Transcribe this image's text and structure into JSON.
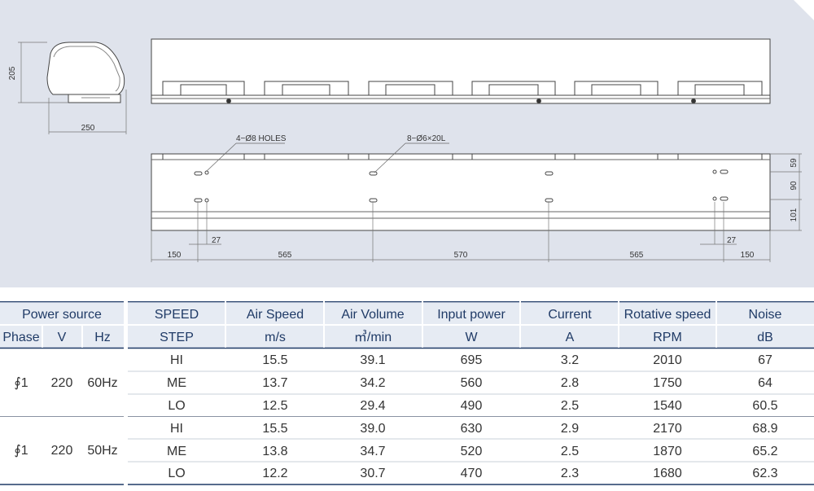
{
  "drawing": {
    "height_dim": "205",
    "width_dim": "250",
    "holes_label": "4−Ø8 HOLES",
    "slots_label": "8−Ø6×20L",
    "right_dims": [
      "59",
      "90",
      "101"
    ],
    "left_27": "27",
    "right_27": "27",
    "bottom_dims": [
      "150",
      "565",
      "570",
      "565",
      "150"
    ]
  },
  "table": {
    "header1": {
      "power_source": "Power source",
      "speed": "SPEED",
      "air_speed": "Air Speed",
      "air_volume": "Air Volume",
      "input_power": "Input power",
      "current": "Current",
      "rotative_speed": "Rotative speed",
      "noise": "Noise"
    },
    "header2": {
      "phase": "Phase",
      "v": "V",
      "hz": "Hz",
      "step": "STEP",
      "air_speed_unit": "m/s",
      "air_volume_unit": "㎥/min",
      "input_power_unit": "W",
      "current_unit": "A",
      "rotative_unit": "RPM",
      "noise_unit": "dB"
    },
    "groups": [
      {
        "phase": "∮1",
        "v": "220",
        "hz": "60Hz",
        "rows": [
          [
            "HI",
            "15.5",
            "39.1",
            "695",
            "3.2",
            "2010",
            "67"
          ],
          [
            "ME",
            "13.7",
            "34.2",
            "560",
            "2.8",
            "1750",
            "64"
          ],
          [
            "LO",
            "12.5",
            "29.4",
            "490",
            "2.5",
            "1540",
            "60.5"
          ]
        ]
      },
      {
        "phase": "∮1",
        "v": "220",
        "hz": "50Hz",
        "rows": [
          [
            "HI",
            "15.5",
            "39.0",
            "630",
            "2.9",
            "2170",
            "68.9"
          ],
          [
            "ME",
            "13.8",
            "34.7",
            "520",
            "2.5",
            "1870",
            "65.2"
          ],
          [
            "LO",
            "12.2",
            "30.7",
            "470",
            "2.3",
            "1680",
            "62.3"
          ]
        ]
      }
    ]
  }
}
